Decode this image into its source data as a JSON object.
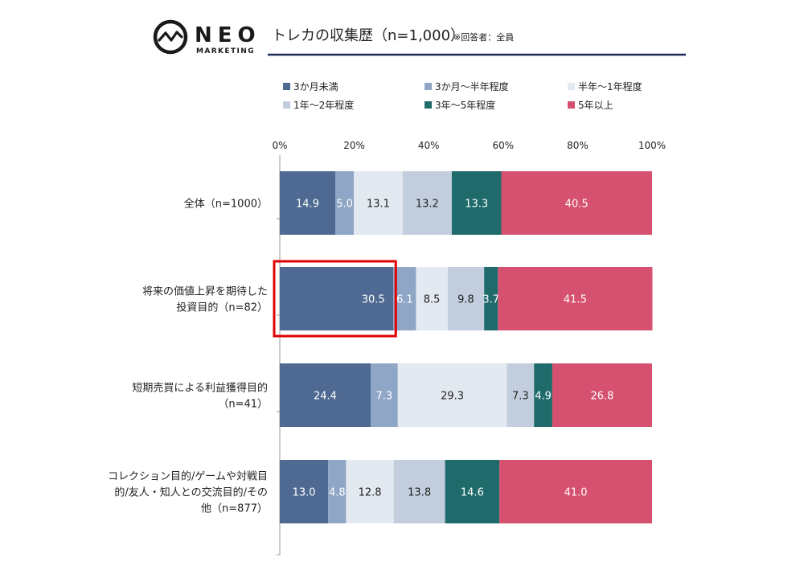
{
  "brand": {
    "logo_text": "NEO",
    "logo_subtext": "MARKETING"
  },
  "header": {
    "title": "トレカの収集歴（n=1,000）",
    "note": "※回答者：全員"
  },
  "colors": {
    "accent_rule": "#1f2a5a",
    "highlight": "#e00000",
    "series": [
      "#4e6a92",
      "#8fa6c6",
      "#e3e9f0",
      "#c2cedd",
      "#1f6b6c",
      "#d5516f"
    ]
  },
  "chart_data": {
    "type": "bar",
    "orientation": "horizontal",
    "stacked": true,
    "percent": true,
    "xlim": [
      0,
      100
    ],
    "x_ticks": [
      "0%",
      "20%",
      "40%",
      "60%",
      "80%",
      "100%"
    ],
    "legend_position": "top",
    "categories": [
      [
        "全体（n=1000）"
      ],
      [
        "将来の価値上昇を期待した",
        "投資目的（n=82）"
      ],
      [
        "短期売買による利益獲得目的",
        "（n=41）"
      ],
      [
        "コレクション目的/ゲームや対戦目",
        "的/友人・知人との交流目的/その",
        "他（n=877）"
      ]
    ],
    "series": [
      {
        "name": "3か月未満",
        "values": [
          14.9,
          30.5,
          24.4,
          13.0
        ]
      },
      {
        "name": "3か月～半年程度",
        "values": [
          5.0,
          6.1,
          7.3,
          4.8
        ]
      },
      {
        "name": "半年～1年程度",
        "values": [
          13.1,
          8.5,
          29.3,
          12.8
        ]
      },
      {
        "name": "1年～2年程度",
        "values": [
          13.2,
          9.8,
          7.3,
          13.8
        ]
      },
      {
        "name": "3年～5年程度",
        "values": [
          13.3,
          3.7,
          4.9,
          14.6
        ]
      },
      {
        "name": "5年以上",
        "values": [
          40.5,
          41.5,
          26.8,
          41.0
        ]
      }
    ],
    "data_labels": [
      [
        "14.9",
        "5.0",
        "13.1",
        "13.2",
        "13.3",
        "40.5"
      ],
      [
        "30.5",
        "6.1",
        "8.5",
        "9.8",
        "3.7",
        "41.5"
      ],
      [
        "24.4",
        "7.3",
        "29.3",
        "7.3",
        "4.9",
        "26.8"
      ],
      [
        "13.0",
        "4.8",
        "12.8",
        "13.8",
        "14.6",
        "41.0"
      ]
    ],
    "highlight": {
      "category_index": 1,
      "series_index": 0
    }
  }
}
